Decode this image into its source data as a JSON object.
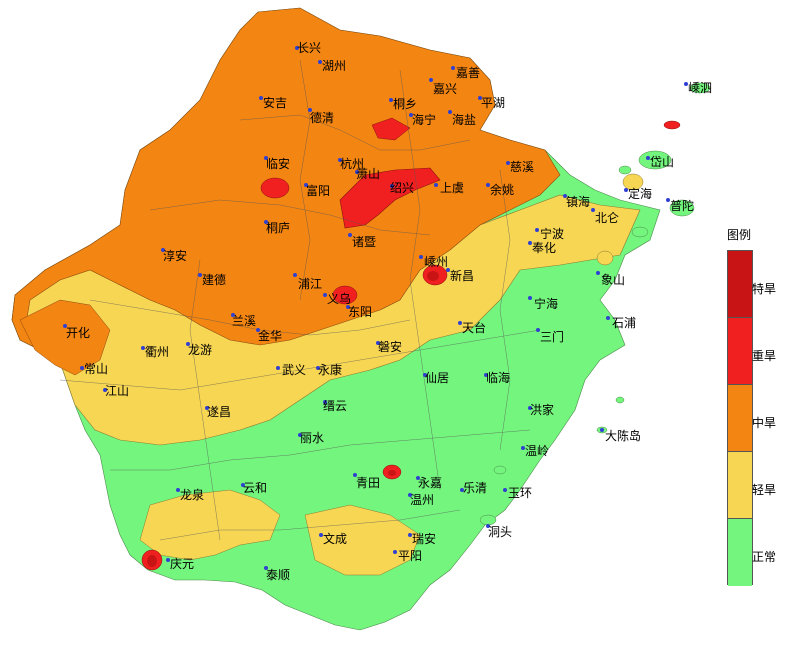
{
  "legend": {
    "title": "图例",
    "items": [
      {
        "label": "特旱",
        "color": "#c81414"
      },
      {
        "label": "重旱",
        "color": "#f02020"
      },
      {
        "label": "中旱",
        "color": "#f38512"
      },
      {
        "label": "轻旱",
        "color": "#f7d654"
      },
      {
        "label": "正常",
        "color": "#74f57e"
      }
    ]
  },
  "cities": [
    {
      "name": "长兴"
    },
    {
      "name": "湖州"
    },
    {
      "name": "嘉善"
    },
    {
      "name": "嘉兴"
    },
    {
      "name": "平湖"
    },
    {
      "name": "安吉"
    },
    {
      "name": "德清"
    },
    {
      "name": "桐乡"
    },
    {
      "name": "海宁"
    },
    {
      "name": "海盐"
    },
    {
      "name": "嵊泗"
    },
    {
      "name": "临安"
    },
    {
      "name": "杭州"
    },
    {
      "name": "萧山"
    },
    {
      "name": "绍兴"
    },
    {
      "name": "上虞"
    },
    {
      "name": "余姚"
    },
    {
      "name": "慈溪"
    },
    {
      "name": "岱山"
    },
    {
      "name": "富阳"
    },
    {
      "name": "定海"
    },
    {
      "name": "普陀"
    },
    {
      "name": "镇海"
    },
    {
      "name": "北仑"
    },
    {
      "name": "宁波"
    },
    {
      "name": "桐庐"
    },
    {
      "name": "诸暨"
    },
    {
      "name": "淳安"
    },
    {
      "name": "奉化"
    },
    {
      "name": "嵊州"
    },
    {
      "name": "新昌"
    },
    {
      "name": "建德"
    },
    {
      "name": "浦江"
    },
    {
      "name": "象山"
    },
    {
      "name": "义乌"
    },
    {
      "name": "东阳"
    },
    {
      "name": "宁海"
    },
    {
      "name": "兰溪"
    },
    {
      "name": "开化"
    },
    {
      "name": "金华"
    },
    {
      "name": "天台"
    },
    {
      "name": "三门"
    },
    {
      "name": "石浦"
    },
    {
      "name": "衢州"
    },
    {
      "name": "龙游"
    },
    {
      "name": "磐安"
    },
    {
      "name": "常山"
    },
    {
      "name": "武义"
    },
    {
      "name": "永康"
    },
    {
      "name": "仙居"
    },
    {
      "name": "临海"
    },
    {
      "name": "江山"
    },
    {
      "name": "遂昌"
    },
    {
      "name": "缙云"
    },
    {
      "name": "洪家"
    },
    {
      "name": "大陈岛"
    },
    {
      "name": "丽水"
    },
    {
      "name": "温岭"
    },
    {
      "name": "青田"
    },
    {
      "name": "玉环"
    },
    {
      "name": "永嘉"
    },
    {
      "name": "龙泉"
    },
    {
      "name": "云和"
    },
    {
      "name": "温州"
    },
    {
      "name": "乐清"
    },
    {
      "name": "洞头"
    },
    {
      "name": "文成"
    },
    {
      "name": "瑞安"
    },
    {
      "name": "庆元"
    },
    {
      "name": "平阳"
    },
    {
      "name": "泰顺"
    }
  ]
}
